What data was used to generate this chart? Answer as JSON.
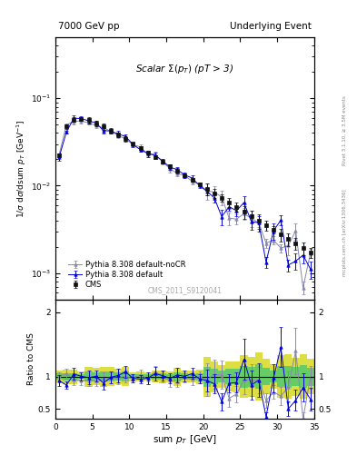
{
  "title_left": "7000 GeV pp",
  "title_right": "Underlying Event",
  "annotation": "Scalar $\\Sigma(p_T)$ (pT > 3)",
  "watermark": "CMS_2011_S9120041",
  "right_label": "Rivet 3.1.10, ≥ 3.5M events",
  "right_label2": "mcplots.cern.ch [arXiv:1306.3436]",
  "xlabel": "sum $p_T$ [GeV]",
  "ylabel": "1/$\\sigma$ d$\\sigma$/dsum $p_T$ [GeV$^{-1}$]",
  "ylabel_ratio": "Ratio to CMS",
  "ylim_main": [
    0.0005,
    0.5
  ],
  "ylim_ratio": [
    0.35,
    2.2
  ],
  "xlim": [
    0,
    35
  ],
  "cms_color": "#111111",
  "py_default_color": "#0000dd",
  "py_nocr_color": "#8888aa",
  "band_green": "#66cc66",
  "band_yellow": "#dddd44"
}
